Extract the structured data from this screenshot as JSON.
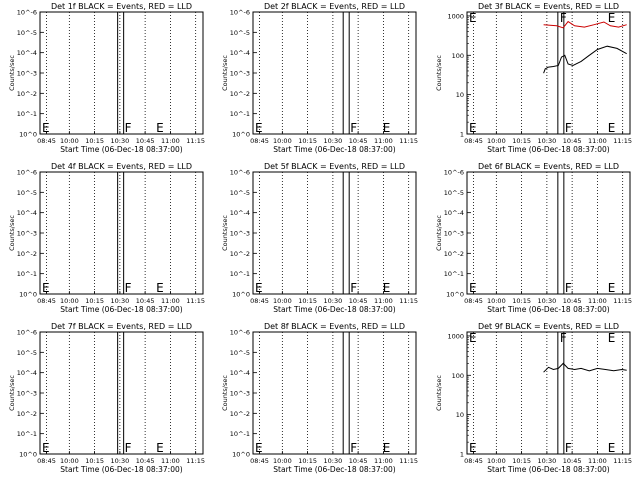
{
  "chart_data": [
    {
      "type": "line",
      "title": "Det 1f BLACK = Events, RED = LLD",
      "xlabel": "Start Time (06-Dec-18 08:37:00)",
      "ylabel": "Counts/sec",
      "xticks": [
        "08:45",
        "10:00",
        "10:15",
        "10:30",
        "10:45",
        "11:00",
        "11:15"
      ],
      "yticks": [
        "10^0",
        "10^-1",
        "10^-2",
        "10^-3",
        "10^-4",
        "10^-5",
        "10^-6"
      ],
      "markers": [
        {
          "label": "E",
          "x": 0
        },
        {
          "label": "F",
          "x": 0.507
        },
        {
          "label": "E",
          "x": 0.7
        }
      ],
      "series": []
    },
    {
      "type": "line",
      "title": "Det 2f BLACK = Events, RED = LLD",
      "xlabel": "Start Time (06-Dec-18 08:37:00)",
      "ylabel": "Counts/sec",
      "xticks": [
        "08:45",
        "10:00",
        "10:15",
        "10:30",
        "10:45",
        "11:00",
        "11:15"
      ],
      "yticks": [
        "10^0",
        "10^-1",
        "10^-2",
        "10^-3",
        "10^-4",
        "10^-5",
        "10^-6"
      ],
      "markers": [
        {
          "label": "E",
          "x": 0
        },
        {
          "label": "F",
          "x": 0.584
        },
        {
          "label": "E",
          "x": 0.784
        }
      ],
      "series": []
    },
    {
      "type": "line",
      "title": "Det 3f BLACK = Events, RED = LLD",
      "xlabel": "Start Time (06-Dec-18 08:37:00)",
      "ylabel": "Counts/sec",
      "xticks": [
        "08:45",
        "10:00",
        "10:15",
        "10:30",
        "10:45",
        "11:00",
        "11:15"
      ],
      "yticks": [
        "1",
        "10",
        "100",
        "1000"
      ],
      "log_ylim": [
        0,
        3.1
      ],
      "markers": [
        {
          "label": "E",
          "x": 0
        },
        {
          "label": "F",
          "x": 0.588
        },
        {
          "label": "E",
          "x": 0.851
        }
      ],
      "series": [
        {
          "color": "#cc0000",
          "points": [
            [
              0.47,
              600
            ],
            [
              0.55,
              560
            ],
            [
              0.59,
              500
            ],
            [
              0.62,
              720
            ],
            [
              0.66,
              560
            ],
            [
              0.72,
              520
            ],
            [
              0.78,
              600
            ],
            [
              0.84,
              700
            ],
            [
              0.88,
              560
            ],
            [
              0.93,
              520
            ],
            [
              0.98,
              600
            ]
          ]
        },
        {
          "color": "#000000",
          "points": [
            [
              0.47,
              35
            ],
            [
              0.48,
              45
            ],
            [
              0.5,
              50
            ],
            [
              0.53,
              52
            ],
            [
              0.56,
              55
            ],
            [
              0.58,
              90
            ],
            [
              0.6,
              100
            ],
            [
              0.62,
              60
            ],
            [
              0.65,
              55
            ],
            [
              0.7,
              70
            ],
            [
              0.75,
              100
            ],
            [
              0.8,
              140
            ],
            [
              0.86,
              170
            ],
            [
              0.92,
              150
            ],
            [
              0.98,
              110
            ]
          ]
        }
      ]
    },
    {
      "type": "line",
      "title": "Det 4f BLACK = Events, RED = LLD",
      "xlabel": "Start Time (06-Dec-18 08:37:00)",
      "ylabel": "Counts/sec",
      "xticks": [
        "08:45",
        "10:00",
        "10:15",
        "10:30",
        "10:45",
        "11:00",
        "11:15"
      ],
      "yticks": [
        "10^0",
        "10^-1",
        "10^-2",
        "10^-3",
        "10^-4",
        "10^-5",
        "10^-6"
      ],
      "markers": [
        {
          "label": "E",
          "x": 0
        },
        {
          "label": "F",
          "x": 0.507
        },
        {
          "label": "E",
          "x": 0.7
        }
      ],
      "series": []
    },
    {
      "type": "line",
      "title": "Det 5f BLACK = Events, RED = LLD",
      "xlabel": "Start Time (06-Dec-18 08:37:00)",
      "ylabel": "Counts/sec",
      "xticks": [
        "08:45",
        "10:00",
        "10:15",
        "10:30",
        "10:45",
        "11:00",
        "11:15"
      ],
      "yticks": [
        "10^0",
        "10^-1",
        "10^-2",
        "10^-3",
        "10^-4",
        "10^-5",
        "10^-6"
      ],
      "markers": [
        {
          "label": "E",
          "x": 0
        },
        {
          "label": "F",
          "x": 0.584
        },
        {
          "label": "E",
          "x": 0.784
        }
      ],
      "series": []
    },
    {
      "type": "line",
      "title": "Det 6f BLACK = Events, RED = LLD",
      "xlabel": "Start Time (06-Dec-18 08:37:00)",
      "ylabel": "Counts/sec",
      "xticks": [
        "08:45",
        "10:00",
        "10:15",
        "10:30",
        "10:45",
        "11:00",
        "11:15"
      ],
      "yticks": [
        "10^0",
        "10^-1",
        "10^-2",
        "10^-3",
        "10^-4",
        "10^-5",
        "10^-6"
      ],
      "markers": [
        {
          "label": "E",
          "x": 0
        },
        {
          "label": "F",
          "x": 0.588
        },
        {
          "label": "E",
          "x": 0.851
        }
      ],
      "series": []
    },
    {
      "type": "line",
      "title": "Det 7f BLACK = Events, RED = LLD",
      "xlabel": "Start Time (06-Dec-18 08:37:00)",
      "ylabel": "Counts/sec",
      "xticks": [
        "08:45",
        "10:00",
        "10:15",
        "10:30",
        "10:45",
        "11:00",
        "11:15"
      ],
      "yticks": [
        "10^0",
        "10^-1",
        "10^-2",
        "10^-3",
        "10^-4",
        "10^-5",
        "10^-6"
      ],
      "markers": [
        {
          "label": "E",
          "x": 0
        },
        {
          "label": "F",
          "x": 0.507
        },
        {
          "label": "E",
          "x": 0.7
        }
      ],
      "series": []
    },
    {
      "type": "line",
      "title": "Det 8f BLACK = Events, RED = LLD",
      "xlabel": "Start Time (06-Dec-18 08:37:00)",
      "ylabel": "Counts/sec",
      "xticks": [
        "08:45",
        "10:00",
        "10:15",
        "10:30",
        "10:45",
        "11:00",
        "11:15"
      ],
      "yticks": [
        "10^0",
        "10^-1",
        "10^-2",
        "10^-3",
        "10^-4",
        "10^-5",
        "10^-6"
      ],
      "markers": [
        {
          "label": "E",
          "x": 0
        },
        {
          "label": "F",
          "x": 0.584
        },
        {
          "label": "E",
          "x": 0.784
        }
      ],
      "series": []
    },
    {
      "type": "line",
      "title": "Det 9f BLACK = Events, RED = LLD",
      "xlabel": "Start Time (06-Dec-18 08:37:00)",
      "ylabel": "Counts/sec",
      "xticks": [
        "08:45",
        "10:00",
        "10:15",
        "10:30",
        "10:45",
        "11:00",
        "11:15"
      ],
      "yticks": [
        "1",
        "10",
        "100",
        "1000"
      ],
      "log_ylim": [
        0,
        3.1
      ],
      "markers": [
        {
          "label": "E",
          "x": 0
        },
        {
          "label": "F",
          "x": 0.588
        },
        {
          "label": "E",
          "x": 0.851
        }
      ],
      "series": [
        {
          "color": "#000000",
          "points": [
            [
              0.47,
              120
            ],
            [
              0.5,
              160
            ],
            [
              0.53,
              140
            ],
            [
              0.56,
              150
            ],
            [
              0.59,
              200
            ],
            [
              0.62,
              150
            ],
            [
              0.66,
              140
            ],
            [
              0.7,
              150
            ],
            [
              0.75,
              130
            ],
            [
              0.8,
              150
            ],
            [
              0.85,
              140
            ],
            [
              0.9,
              130
            ],
            [
              0.95,
              140
            ],
            [
              0.98,
              135
            ]
          ]
        }
      ]
    }
  ]
}
